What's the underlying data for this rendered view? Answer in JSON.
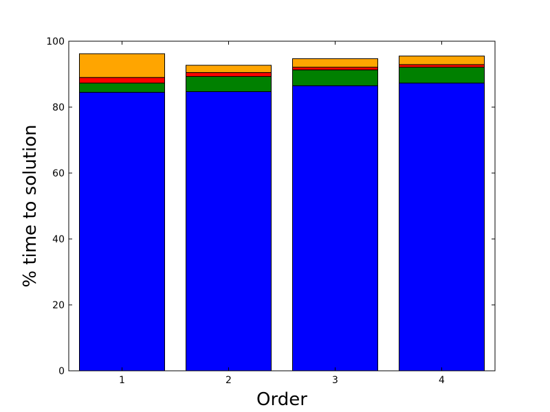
{
  "chart_data": {
    "type": "bar",
    "stacked": true,
    "categories": [
      "1",
      "2",
      "3",
      "4"
    ],
    "series": [
      {
        "color": "#0000ff",
        "values": [
          84.5,
          84.7,
          86.5,
          87.3
        ]
      },
      {
        "color": "#008000",
        "values": [
          2.8,
          4.6,
          4.8,
          4.8
        ]
      },
      {
        "color": "#ff0000",
        "values": [
          1.7,
          1.2,
          0.8,
          0.8
        ]
      },
      {
        "color": "#ffa500",
        "values": [
          7.2,
          2.2,
          2.6,
          2.6
        ]
      }
    ],
    "title": "",
    "xlabel": "Order",
    "ylabel": "% time to solution",
    "ylim": [
      0,
      100
    ],
    "yticks": [
      0,
      20,
      40,
      60,
      80,
      100
    ],
    "grid": false,
    "legend": "none"
  }
}
